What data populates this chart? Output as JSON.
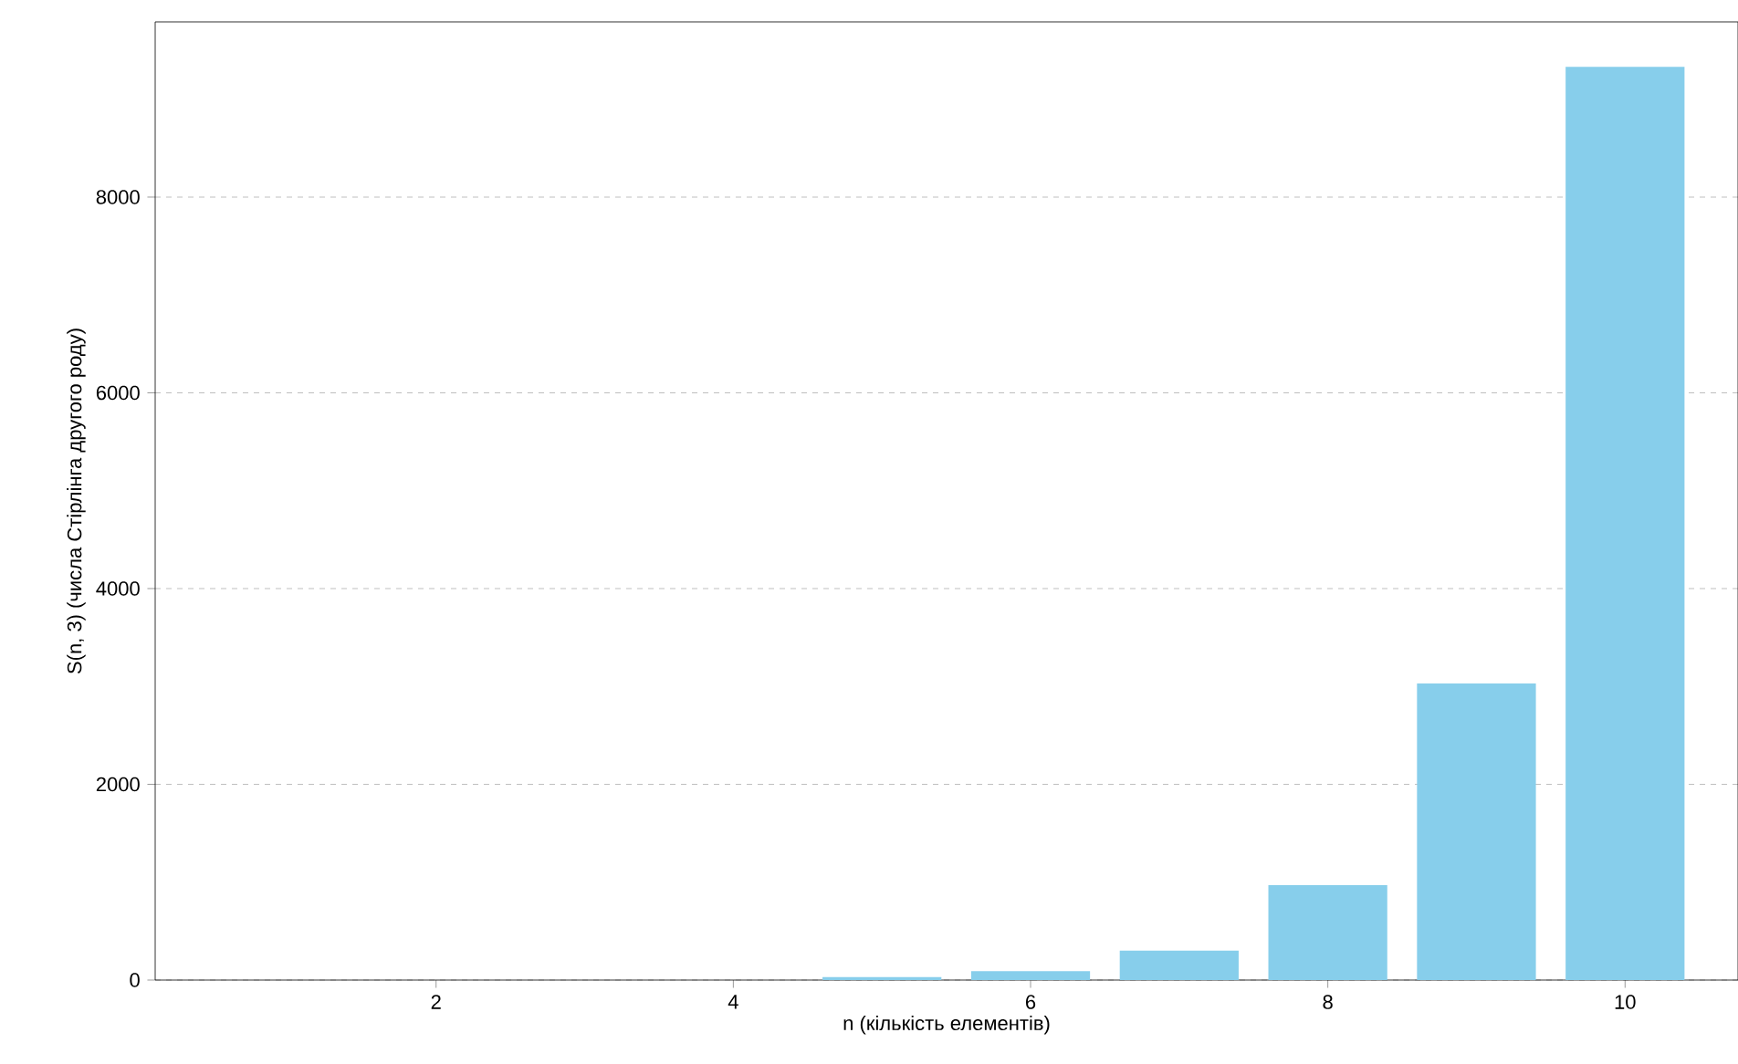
{
  "chart_data": {
    "type": "bar",
    "xlabel": "n (кількість елементів)",
    "ylabel": "S(n, 3) (числа Стірлінга другого роду)",
    "x": [
      1,
      2,
      3,
      4,
      5,
      6,
      7,
      8,
      9,
      10
    ],
    "values": [
      0,
      0,
      0,
      0,
      30,
      90,
      300,
      970,
      3030,
      9330
    ],
    "color": "#87ceeb",
    "xlim": [
      0.11,
      10.76
    ],
    "ylim": [
      0,
      9790
    ],
    "xticks": [
      2,
      4,
      6,
      8,
      10
    ],
    "yticks": [
      0,
      2000,
      4000,
      6000,
      8000
    ],
    "grid": "y"
  }
}
